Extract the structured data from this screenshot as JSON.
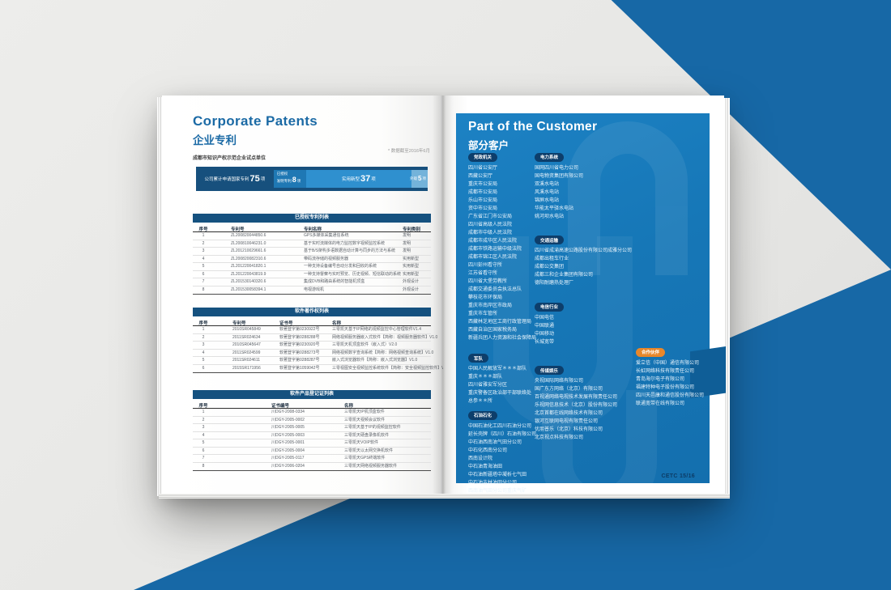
{
  "colors": {
    "background_blue": "#1768a6",
    "panel_blue": "#1677b7",
    "accent_navy": "#15517f",
    "accent_orange": "#e8872a"
  },
  "left_page": {
    "title_en": "Corporate Patents",
    "title_cn": "企业专利",
    "certification": "成都市知识产权示范企业试点单位",
    "footnote": "* 数据截至2016年6月",
    "stats": {
      "total_label": "公司累计申请国家专利",
      "total_value": "75",
      "total_unit": "项",
      "granted_label": "已授权",
      "invention_label": "发明专利",
      "invention_value": "8",
      "invention_unit": "项",
      "utility_label": "实用新型",
      "utility_value": "37",
      "utility_unit": "项",
      "design_label": "外观",
      "design_value": "5",
      "design_unit": "项"
    },
    "tables": [
      {
        "title": "已授权专利列表",
        "headers": [
          "序号",
          "专利号",
          "专利名称",
          "专利类别"
        ],
        "rows": [
          [
            "1",
            "ZL200820044850.6",
            "GPS多媒体采集通信系统",
            "发明"
          ],
          [
            "2",
            "ZL200810046231.0",
            "基于实时流媒体的电力监控数字视频监控系统",
            "发明"
          ],
          [
            "3",
            "ZL201210029661.6",
            "基于B/S架构多语数据自动计算与同步的方法与系统",
            "发明"
          ],
          [
            "4",
            "ZL200820082310.6",
            "带码流存储的视频服务器",
            "实用新型"
          ],
          [
            "5",
            "ZL201220041820.1",
            "一种支持设备编号自动分发和回收的系统",
            "实用新型"
          ],
          [
            "6",
            "ZL201220043819.9",
            "一种支持督察与实时预览、历史视频、短信联动的系统",
            "实用新型"
          ],
          [
            "7",
            "ZL201530140320.6",
            "集成DVB和路由系统的智能机顶盒",
            "外观设计"
          ],
          [
            "8",
            "ZL201530058394.1",
            "电视游戏机",
            "外观设计"
          ]
        ]
      },
      {
        "title": "软件著作权列表",
        "headers": [
          "序号",
          "专利号",
          "证书号",
          "名称"
        ],
        "rows": [
          [
            "1",
            "2010SR045849",
            "软著登字第0230922号",
            "三零凯天基于IP网络的视频监控中心管理软件V1.4"
          ],
          [
            "2",
            "2011SR024634",
            "软著登字第0288288号",
            "网络视频服务器嵌入式软件【简称：视频服务器软件】V1.0"
          ],
          [
            "3",
            "2010SR045647",
            "软著登字第0230920号",
            "三零凯天机顶盒软件（嵌入式）V2.0"
          ],
          [
            "4",
            "2011SR024599",
            "软著登字第0288273号",
            "网络视频数字查询系统【简称：网络视频查询系统】V1.0"
          ],
          [
            "5",
            "2011SR024611",
            "软著登字第0288287号",
            "嵌入式浏览器软件【简称：嵌入式浏览器】V1.0"
          ],
          [
            "6",
            "2015SR171956",
            "软著登字第1059042号",
            "三零视图安全视频监控系统软件【简称：安全视频监控软件】V2.0"
          ]
        ]
      },
      {
        "title": "软件产品登记证列表",
        "headers": [
          "序号",
          "证书编号",
          "名称"
        ],
        "rows": [
          [
            "1",
            "川DGY-2008-0334",
            "三零凯天IP机顶盒软件"
          ],
          [
            "2",
            "川DGY-2005-0002",
            "三零凯天视频会议软件"
          ],
          [
            "3",
            "川DGY-2005-0005",
            "三零凯天基于IP的视频监控软件"
          ],
          [
            "4",
            "川DGY-2005-0003",
            "三零凯天硬盘录像机软件"
          ],
          [
            "5",
            "川DGY-2005-0001",
            "三零凯天VOIP软件"
          ],
          [
            "6",
            "川DGY-2005-0004",
            "三零凯天以太网交换机软件"
          ],
          [
            "7",
            "川DGY-2005-0117",
            "三零凯天GPS终端软件"
          ],
          [
            "8",
            "川DGY-2006-0204",
            "三零凯天网络视频服务器软件"
          ]
        ]
      }
    ]
  },
  "right_page": {
    "title_en": "Part of the Customer",
    "title_cn": "部分客户",
    "page_number": "CETC 15/16",
    "columns": [
      {
        "groups": [
          {
            "badge": "党政机关",
            "items": [
              "四川省公安厅",
              "西藏公安厅",
              "重庆市公安局",
              "成都市公安局",
              "乐山市公安局",
              "资中市公安局",
              "广东省江门市公安局",
              "四川省高级人民法院",
              "成都市中级人民法院",
              "成都市成华区人民法院",
              "成都市铁路运输中级法院",
              "成都市锦江区人民法院",
              "四川彭州看守所",
              "江苏省看守所",
              "四川省大堡劳教所",
              "成都交通委员会执法总队",
              "攀枝花市环保局",
              "重庆市南岸区市政局",
              "重庆市车管所",
              "西藏林芝地区工商行政管理局",
              "西藏自治区国家税务局",
              "新疆兵团人力资源和社会保障局"
            ]
          },
          {
            "badge": "军队",
            "items": [
              "中国人民解放军＊＊＊部队",
              "重庆＊＊＊部队",
              "四川省雅安军分区",
              "重庆警备区政治部干部联络处",
              "总参＊＊所"
            ]
          },
          {
            "badge": "石油石化",
            "items": [
              "中国石油化工四川石油分公司",
              "延长壳牌（四川）石油有限公司",
              "中石油西南油气田分公司",
              "中石化西南分公司",
              "西南设计院",
              "中石油青海油田",
              "中石油新疆塔中凝析七气田",
              "中石油吉林油田分公司",
              "西南油气田分公司重庆气矿"
            ]
          }
        ]
      },
      {
        "groups": [
          {
            "badge": "电力系统",
            "items": [
              "国网四川省电力公司",
              "国电物资集团有限公司",
              "双溪水电站",
              "风溪水电站",
              "锦屏水电站",
              "华能太平驿水电站",
              "姚河坝水电站"
            ]
          },
          {
            "badge": "交通运输",
            "items": [
              "四川省成渝高速公路股份有限公司成雅分公司",
              "成都出租车行业",
              "成都公交集团",
              "成都三和企业集团有限公司",
              "德阳耐磨热处理厂"
            ]
          },
          {
            "badge": "电信行业",
            "items": [
              "中国电信",
              "中国联通",
              "中国移动",
              "长城宽带"
            ]
          },
          {
            "badge": "传媒娱乐",
            "items": [
              "央视国际网络有限公司",
              "国广东方网络（北京）有限公司",
              "百视通网络电视技术发展有限责任公司",
              "乐视网信息技术（北京）股份有限公司",
              "北京首都在线网络技术有限公司",
              "银河互联网电视有限责任公司",
              "优朋普乐（北京）科技有限公司",
              "北京视点科技有限公司"
            ]
          }
        ]
      },
      {
        "groups": [
          {
            "badge": "合作伙伴",
            "items": [
              "爱立信（中国）通信有限公司",
              "长虹网络科技有限责任公司",
              "青岛海尔电子有限公司",
              "福建特种电子股份有限公司",
              "四川天邑康和通信股份有限公司",
              "联通宽带在线有限公司"
            ]
          }
        ]
      }
    ]
  }
}
